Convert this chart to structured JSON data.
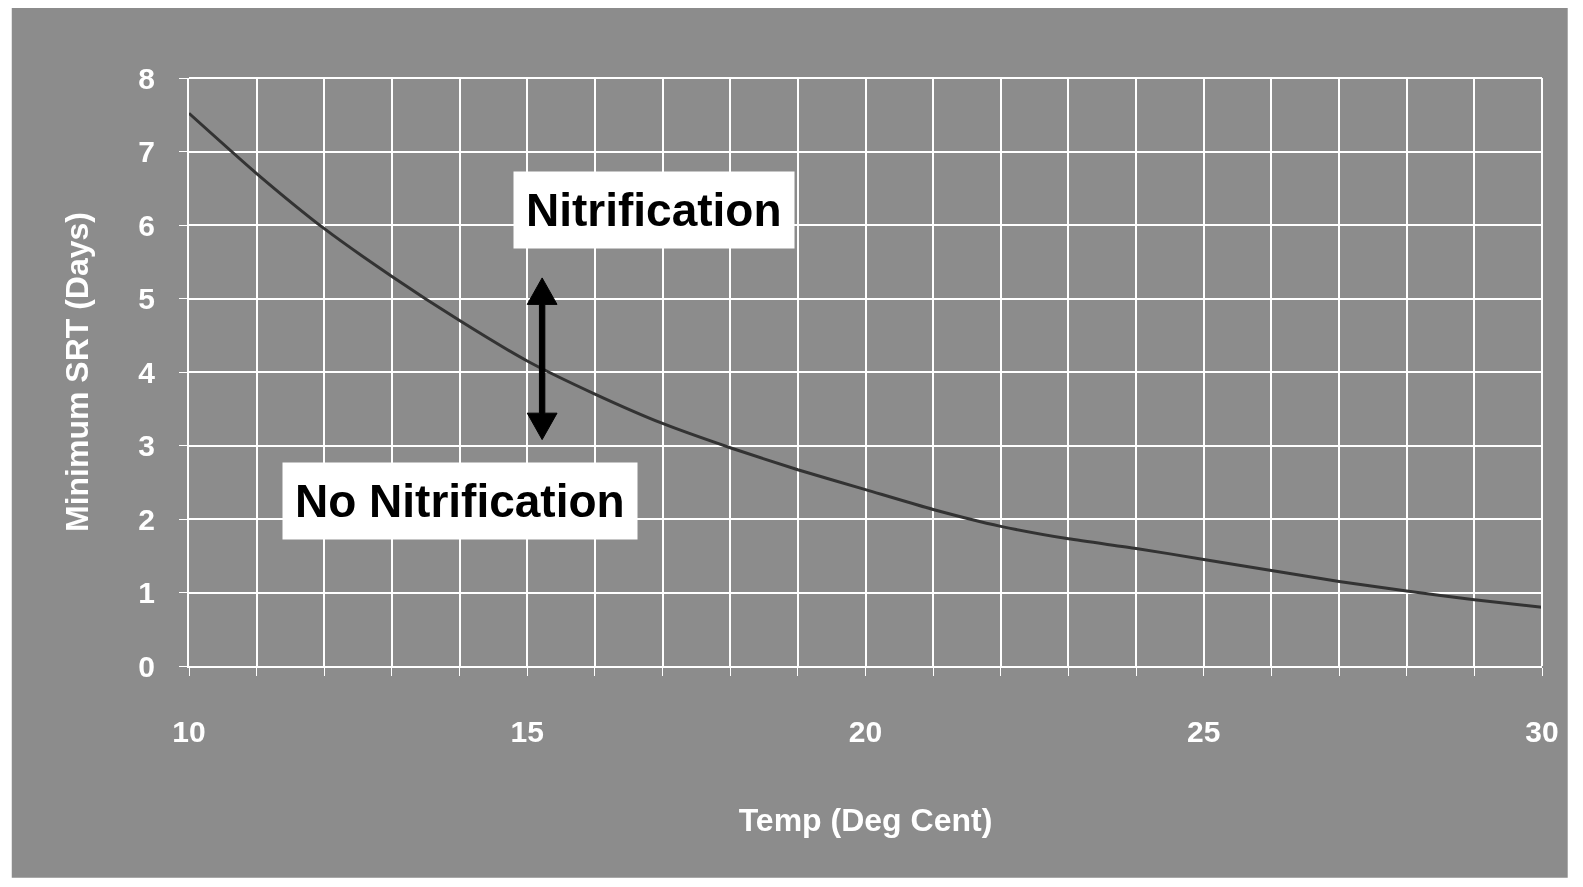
{
  "chart_data": {
    "type": "line",
    "xlabel": "Temp (Deg Cent)",
    "ylabel": "Minimum SRT (Days)",
    "x": [
      10,
      11,
      12,
      13,
      14,
      15,
      16,
      17,
      18,
      19,
      20,
      21,
      22,
      23,
      24,
      25,
      26,
      27,
      28,
      29,
      30
    ],
    "series": [
      {
        "color": "#333333",
        "values": [
          7.52,
          6.7,
          5.95,
          5.3,
          4.7,
          4.15,
          3.7,
          3.3,
          2.97,
          2.67,
          2.4,
          2.13,
          1.9,
          1.73,
          1.6,
          1.45,
          1.3,
          1.15,
          1.02,
          0.9,
          0.8
        ]
      }
    ],
    "xlim": [
      10,
      30
    ],
    "ylim": [
      0,
      8
    ],
    "xticks": [
      10,
      {
        "value": 11,
        "label": null
      },
      {
        "value": 12,
        "label": null
      },
      {
        "value": 13,
        "label": null
      },
      {
        "value": 14,
        "label": null
      },
      15,
      {
        "value": 16,
        "label": null
      },
      {
        "value": 17,
        "label": null
      },
      {
        "value": 18,
        "label": null
      },
      {
        "value": 19,
        "label": null
      },
      20,
      {
        "value": 21,
        "label": null
      },
      {
        "value": 22,
        "label": null
      },
      {
        "value": 23,
        "label": null
      },
      {
        "value": 24,
        "label": null
      },
      25,
      {
        "value": 26,
        "label": null
      },
      {
        "value": 27,
        "label": null
      },
      {
        "value": 28,
        "label": null
      },
      {
        "value": 29,
        "label": null
      },
      30
    ],
    "yticks": [
      0,
      1,
      2,
      3,
      4,
      5,
      6,
      7,
      8
    ],
    "annotations": [
      "Nitrification",
      "No Nitrification"
    ],
    "grid": true,
    "marker": "none",
    "line_style": "solid"
  }
}
